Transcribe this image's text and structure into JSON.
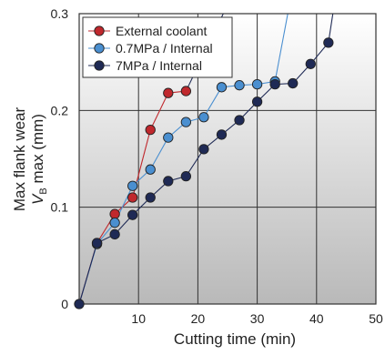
{
  "chart_data": {
    "type": "line",
    "xlabel": "Cutting time (min)",
    "ylabel_line1": "Max flank wear",
    "ylabel_line2_var": "V",
    "ylabel_line2_sub": "B",
    "ylabel_line2_rest": " max (mm)",
    "xlim": [
      0,
      50
    ],
    "ylim": [
      0,
      0.3
    ],
    "x_ticks": [
      "10",
      "20",
      "30",
      "40",
      "50"
    ],
    "y_ticks": [
      "0",
      "0.1",
      "0.2",
      "0.3"
    ],
    "grid": true,
    "legend_position": "top-left",
    "series": [
      {
        "name": "External coolant",
        "color": "#c0282d",
        "x": [
          0,
          3,
          6,
          9,
          12,
          15,
          18
        ],
        "y": [
          0,
          0.063,
          0.093,
          0.11,
          0.18,
          0.218,
          0.22
        ]
      },
      {
        "name": "0.7MPa / Internal",
        "color": "#4a8fd0",
        "x": [
          0,
          3,
          6,
          9,
          12,
          15,
          18,
          21,
          24,
          27,
          30,
          33
        ],
        "y": [
          0,
          0.062,
          0.084,
          0.122,
          0.139,
          0.172,
          0.188,
          0.193,
          0.224,
          0.226,
          0.227,
          0.23
        ],
        "tail": {
          "x": [
            33,
            37
          ],
          "y": [
            0.23,
            0.36
          ]
        }
      },
      {
        "name": "7MPa / Internal",
        "color": "#1f2a55",
        "x": [
          0,
          3,
          6,
          9,
          12,
          15,
          18,
          21,
          24,
          27,
          30,
          33,
          36,
          39,
          42
        ],
        "y": [
          0,
          0.063,
          0.072,
          0.092,
          0.11,
          0.127,
          0.132,
          0.16,
          0.175,
          0.19,
          0.209,
          0.227,
          0.228,
          0.248,
          0.27
        ],
        "tail": {
          "x": [
            42,
            44
          ],
          "y": [
            0.27,
            0.35
          ]
        }
      }
    ],
    "extra_line": {
      "color": "#1f2a55",
      "x": [
        18,
        29
      ],
      "y": [
        0.22,
        0.36
      ]
    }
  }
}
